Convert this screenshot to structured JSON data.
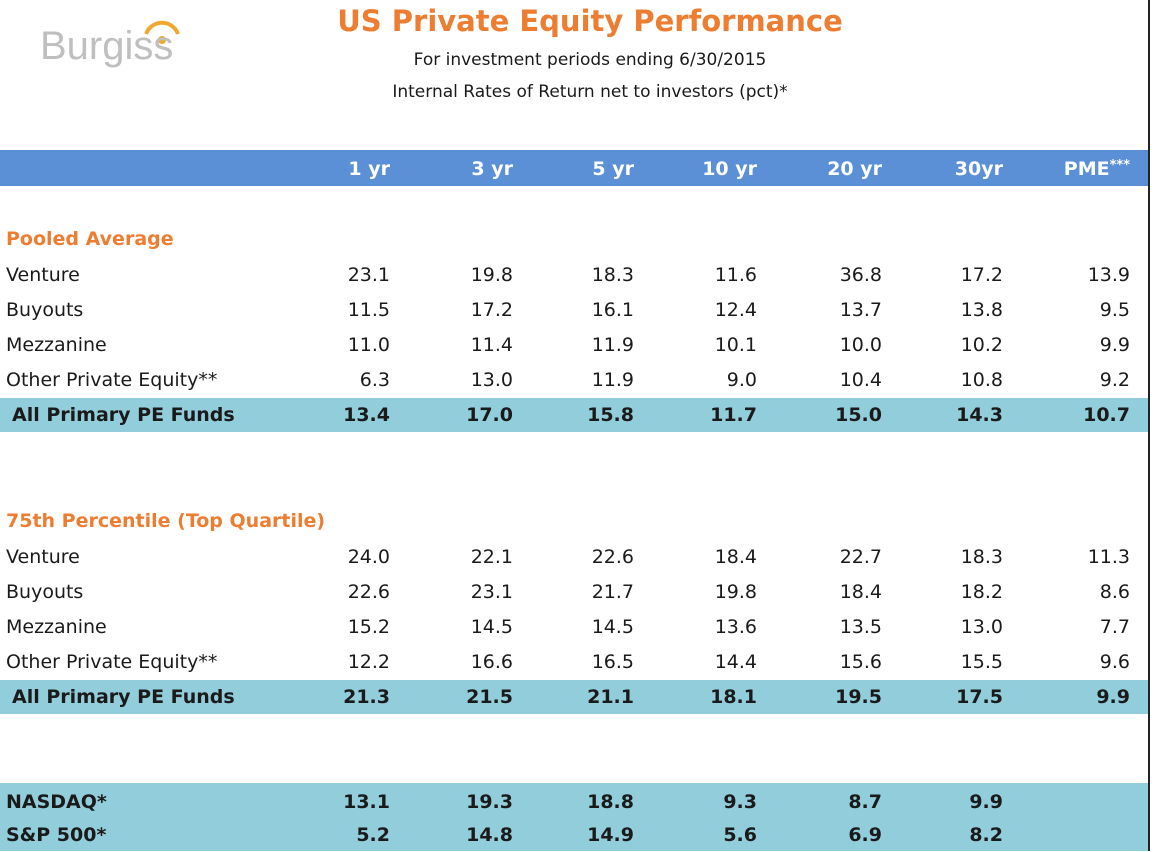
{
  "logo": {
    "text": "Burgiss"
  },
  "header": {
    "title": "US Private Equity Performance",
    "subtitle": "For investment  periods ending 6/30/2015",
    "subtitle2": "Internal Rates of Return net to investors (pct)*"
  },
  "columns": [
    "1 yr",
    "3 yr",
    "5 yr",
    "10 yr",
    "20 yr",
    "30yr",
    "PME***"
  ],
  "colors": {
    "header_bg": "#5b8fd6",
    "highlight_bg": "#92cddc",
    "section": "#ed7d31"
  },
  "pooled": {
    "title": "Pooled Average",
    "rows": [
      {
        "label": "Venture",
        "values": [
          "23.1",
          "19.8",
          "18.3",
          "11.6",
          "36.8",
          "17.2",
          "13.9"
        ]
      },
      {
        "label": "Buyouts",
        "values": [
          "11.5",
          "17.2",
          "16.1",
          "12.4",
          "13.7",
          "13.8",
          "9.5"
        ]
      },
      {
        "label": "Mezzanine",
        "values": [
          "11.0",
          "11.4",
          "11.9",
          "10.1",
          "10.0",
          "10.2",
          "9.9"
        ]
      },
      {
        "label": "Other Private Equity**",
        "values": [
          "6.3",
          "13.0",
          "11.9",
          "9.0",
          "10.4",
          "10.8",
          "9.2"
        ]
      }
    ],
    "total": {
      "label": "All Primary PE Funds",
      "values": [
        "13.4",
        "17.0",
        "15.8",
        "11.7",
        "15.0",
        "14.3",
        "10.7"
      ]
    }
  },
  "quartile": {
    "title": "75th Percentile (Top Quartile)",
    "rows": [
      {
        "label": "Venture",
        "values": [
          "24.0",
          "22.1",
          "22.6",
          "18.4",
          "22.7",
          "18.3",
          "11.3"
        ]
      },
      {
        "label": "Buyouts",
        "values": [
          "22.6",
          "23.1",
          "21.7",
          "19.8",
          "18.4",
          "18.2",
          "8.6"
        ]
      },
      {
        "label": "Mezzanine",
        "values": [
          "15.2",
          "14.5",
          "14.5",
          "13.6",
          "13.5",
          "13.0",
          "7.7"
        ]
      },
      {
        "label": "Other Private Equity**",
        "values": [
          "12.2",
          "16.6",
          "16.5",
          "14.4",
          "15.6",
          "15.5",
          "9.6"
        ]
      }
    ],
    "total": {
      "label": "All Primary PE Funds",
      "values": [
        "21.3",
        "21.5",
        "21.1",
        "18.1",
        "19.5",
        "17.5",
        "9.9"
      ]
    }
  },
  "indices": [
    {
      "label": "NASDAQ*",
      "values": [
        "13.1",
        "19.3",
        "18.8",
        "9.3",
        "8.7",
        "9.9",
        ""
      ]
    },
    {
      "label": "S&P 500*",
      "values": [
        "5.2",
        "14.8",
        "14.9",
        "5.6",
        "6.9",
        "8.2",
        ""
      ]
    }
  ]
}
